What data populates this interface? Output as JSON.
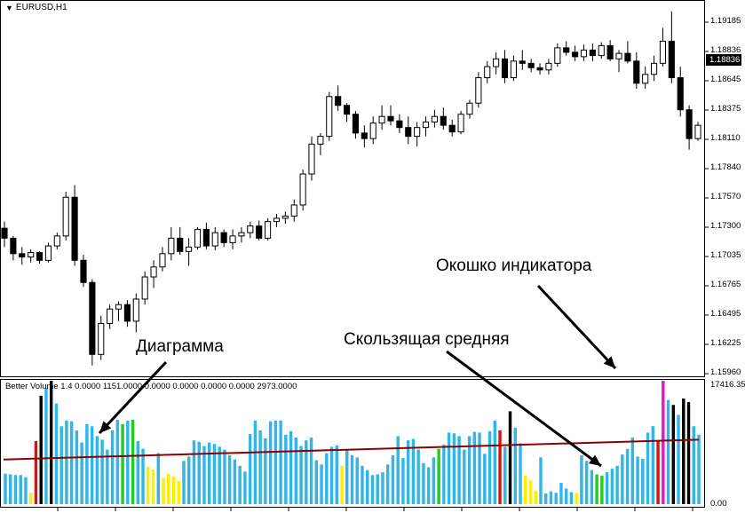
{
  "window": {
    "symbol_title": "EURUSD,H1",
    "menu_icon": "triangle-down-icon"
  },
  "price_axis": {
    "labels": [
      "1.19185",
      "1.18836",
      "1.18645",
      "1.18375",
      "1.18110",
      "1.17840",
      "1.17570",
      "1.17300",
      "1.17035",
      "1.16765",
      "1.16495",
      "1.16225",
      "1.15960"
    ],
    "current_price": "1.18836"
  },
  "indicator": {
    "title": "Better Volume 1.4 0.0000 1151.0000 0.0000 0.0000 0.0000 0.0000 2973.0000",
    "axis_top": "17416.35",
    "axis_bottom": "0.00"
  },
  "annotations": {
    "indicator_window": "Окошко индикатора",
    "moving_average": "Скользящая средняя",
    "diagram": "Диаграмма"
  },
  "colors": {
    "volume_blue": "#33b5e5",
    "volume_green": "#22cc22",
    "volume_yellow": "#ffee00",
    "volume_red": "#dd1111",
    "volume_black": "#000000",
    "volume_magenta": "#ee11cc",
    "moving_average": "#8b0000",
    "candle_bull": "#ffffff",
    "candle_bear": "#000000"
  },
  "chart_data": [
    {
      "type": "candlestick",
      "title": "EURUSD,H1",
      "ylim": [
        1.1596,
        1.1932
      ],
      "candles": [
        [
          1.1729,
          1.1735,
          1.1712,
          1.172
        ],
        [
          1.172,
          1.1722,
          1.17,
          1.1706
        ],
        [
          1.1706,
          1.1712,
          1.1696,
          1.1703
        ],
        [
          1.1703,
          1.171,
          1.1698,
          1.1707
        ],
        [
          1.1707,
          1.1708,
          1.1697,
          1.17
        ],
        [
          1.17,
          1.1716,
          1.1698,
          1.1713
        ],
        [
          1.1713,
          1.1725,
          1.171,
          1.1722
        ],
        [
          1.1722,
          1.1762,
          1.1718,
          1.1757
        ],
        [
          1.1757,
          1.1768,
          1.1695,
          1.17
        ],
        [
          1.17,
          1.1705,
          1.1676,
          1.168
        ],
        [
          1.168,
          1.1683,
          1.1605,
          1.1615
        ],
        [
          1.1615,
          1.165,
          1.161,
          1.1643
        ],
        [
          1.1643,
          1.166,
          1.1638,
          1.1656
        ],
        [
          1.1656,
          1.1663,
          1.1645,
          1.166
        ],
        [
          1.166,
          1.1664,
          1.164,
          1.1645
        ],
        [
          1.1645,
          1.167,
          1.1635,
          1.1665
        ],
        [
          1.1665,
          1.169,
          1.166,
          1.1685
        ],
        [
          1.1685,
          1.17,
          1.1675,
          1.1694
        ],
        [
          1.1694,
          1.1712,
          1.169,
          1.1706
        ],
        [
          1.1706,
          1.173,
          1.17,
          1.172
        ],
        [
          1.172,
          1.173,
          1.1705,
          1.1708
        ],
        [
          1.1708,
          1.172,
          1.1695,
          1.1712
        ],
        [
          1.1712,
          1.173,
          1.171,
          1.1728
        ],
        [
          1.1728,
          1.1734,
          1.171,
          1.1713
        ],
        [
          1.1713,
          1.173,
          1.1709,
          1.1725
        ],
        [
          1.1725,
          1.1728,
          1.1712,
          1.1716
        ],
        [
          1.1716,
          1.1728,
          1.171,
          1.1722
        ],
        [
          1.1722,
          1.173,
          1.1716,
          1.1725
        ],
        [
          1.1725,
          1.1735,
          1.172,
          1.1731
        ],
        [
          1.1731,
          1.1736,
          1.1718,
          1.172
        ],
        [
          1.172,
          1.1738,
          1.1718,
          1.1735
        ],
        [
          1.1735,
          1.1742,
          1.173,
          1.1738
        ],
        [
          1.1738,
          1.1744,
          1.1733,
          1.174
        ],
        [
          1.174,
          1.1755,
          1.1735,
          1.175
        ],
        [
          1.175,
          1.1782,
          1.1745,
          1.1778
        ],
        [
          1.1778,
          1.1812,
          1.1772,
          1.1805
        ],
        [
          1.1805,
          1.1815,
          1.1795,
          1.1812
        ],
        [
          1.1812,
          1.1852,
          1.1808,
          1.1848
        ],
        [
          1.1848,
          1.1858,
          1.1835,
          1.184
        ],
        [
          1.184,
          1.1842,
          1.1825,
          1.1832
        ],
        [
          1.1832,
          1.1835,
          1.181,
          1.1815
        ],
        [
          1.1815,
          1.1822,
          1.1802,
          1.181
        ],
        [
          1.181,
          1.183,
          1.1805,
          1.1824
        ],
        [
          1.1824,
          1.184,
          1.1818,
          1.183
        ],
        [
          1.183,
          1.184,
          1.1822,
          1.1826
        ],
        [
          1.1826,
          1.1832,
          1.1815,
          1.182
        ],
        [
          1.182,
          1.183,
          1.1805,
          1.1812
        ],
        [
          1.1812,
          1.1825,
          1.1803,
          1.182
        ],
        [
          1.182,
          1.183,
          1.1812,
          1.1825
        ],
        [
          1.1825,
          1.1836,
          1.182,
          1.183
        ],
        [
          1.183,
          1.1838,
          1.1818,
          1.1822
        ],
        [
          1.1822,
          1.1827,
          1.1812,
          1.1816
        ],
        [
          1.1816,
          1.1835,
          1.1814,
          1.1832
        ],
        [
          1.1832,
          1.1845,
          1.1828,
          1.1842
        ],
        [
          1.1842,
          1.187,
          1.1838,
          1.1865
        ],
        [
          1.1865,
          1.188,
          1.186,
          1.1875
        ],
        [
          1.1875,
          1.1888,
          1.1868,
          1.1882
        ],
        [
          1.1882,
          1.189,
          1.186,
          1.1865
        ],
        [
          1.1865,
          1.1885,
          1.1862,
          1.188
        ],
        [
          1.188,
          1.189,
          1.1872,
          1.1878
        ],
        [
          1.1878,
          1.1882,
          1.187,
          1.1874
        ],
        [
          1.1874,
          1.1878,
          1.1868,
          1.1872
        ],
        [
          1.1872,
          1.1882,
          1.1868,
          1.1878
        ],
        [
          1.1878,
          1.1896,
          1.1875,
          1.1892
        ],
        [
          1.1892,
          1.1898,
          1.1885,
          1.1888
        ],
        [
          1.1888,
          1.1894,
          1.188,
          1.1884
        ],
        [
          1.1884,
          1.1895,
          1.188,
          1.189
        ],
        [
          1.189,
          1.1896,
          1.188,
          1.1885
        ],
        [
          1.1885,
          1.1897,
          1.1882,
          1.1894
        ],
        [
          1.1894,
          1.1899,
          1.188,
          1.1882
        ],
        [
          1.1882,
          1.189,
          1.187,
          1.1887
        ],
        [
          1.1887,
          1.1898,
          1.1878,
          1.188
        ],
        [
          1.188,
          1.1888,
          1.1855,
          1.186
        ],
        [
          1.186,
          1.1875,
          1.1855,
          1.1868
        ],
        [
          1.1868,
          1.1885,
          1.1862,
          1.1878
        ],
        [
          1.1878,
          1.191,
          1.1875,
          1.1898
        ],
        [
          1.1898,
          1.1925,
          1.186,
          1.1865
        ],
        [
          1.1865,
          1.1875,
          1.183,
          1.1836
        ],
        [
          1.1836,
          1.184,
          1.18,
          1.181
        ],
        [
          1.181,
          1.1825,
          1.1808,
          1.1822
        ]
      ]
    },
    {
      "type": "bar",
      "title": "Better Volume 1.4",
      "ylim": [
        0,
        17416.35
      ],
      "series": [
        {
          "name": "Volume",
          "values": [
            {
              "v": 4300,
              "c": "blue"
            },
            {
              "v": 4200,
              "c": "blue"
            },
            {
              "v": 4100,
              "c": "blue"
            },
            {
              "v": 4100,
              "c": "blue"
            },
            {
              "v": 3800,
              "c": "blue"
            },
            {
              "v": 1600,
              "c": "yellow"
            },
            {
              "v": 8900,
              "c": "red"
            },
            {
              "v": 15300,
              "c": "black"
            },
            {
              "v": 16400,
              "c": "blue"
            },
            {
              "v": 17416,
              "c": "black"
            },
            {
              "v": 14200,
              "c": "blue"
            },
            {
              "v": 11000,
              "c": "blue"
            },
            {
              "v": 11800,
              "c": "blue"
            },
            {
              "v": 11700,
              "c": "blue"
            },
            {
              "v": 10400,
              "c": "blue"
            },
            {
              "v": 8700,
              "c": "blue"
            },
            {
              "v": 11300,
              "c": "blue"
            },
            {
              "v": 11000,
              "c": "blue"
            },
            {
              "v": 9600,
              "c": "blue"
            },
            {
              "v": 9100,
              "c": "blue"
            },
            {
              "v": 7700,
              "c": "blue"
            },
            {
              "v": 10400,
              "c": "blue"
            },
            {
              "v": 11900,
              "c": "blue"
            },
            {
              "v": 11300,
              "c": "green"
            },
            {
              "v": 11800,
              "c": "blue"
            },
            {
              "v": 11900,
              "c": "green"
            },
            {
              "v": 8900,
              "c": "blue"
            },
            {
              "v": 7800,
              "c": "blue"
            },
            {
              "v": 5300,
              "c": "yellow"
            },
            {
              "v": 4900,
              "c": "yellow"
            },
            {
              "v": 7200,
              "c": "blue"
            },
            {
              "v": 3700,
              "c": "yellow"
            },
            {
              "v": 4300,
              "c": "yellow"
            },
            {
              "v": 3900,
              "c": "yellow"
            },
            {
              "v": 3300,
              "c": "yellow"
            },
            {
              "v": 6100,
              "c": "blue"
            },
            {
              "v": 6700,
              "c": "blue"
            },
            {
              "v": 9000,
              "c": "blue"
            },
            {
              "v": 8800,
              "c": "blue"
            },
            {
              "v": 8200,
              "c": "blue"
            },
            {
              "v": 8700,
              "c": "blue"
            },
            {
              "v": 8500,
              "c": "blue"
            },
            {
              "v": 8100,
              "c": "blue"
            },
            {
              "v": 7700,
              "c": "blue"
            },
            {
              "v": 6900,
              "c": "blue"
            },
            {
              "v": 6300,
              "c": "blue"
            },
            {
              "v": 5400,
              "c": "blue"
            },
            {
              "v": 4600,
              "c": "blue"
            },
            {
              "v": 9900,
              "c": "blue"
            },
            {
              "v": 11800,
              "c": "blue"
            },
            {
              "v": 10400,
              "c": "blue"
            },
            {
              "v": 9300,
              "c": "blue"
            },
            {
              "v": 11700,
              "c": "blue"
            },
            {
              "v": 11800,
              "c": "blue"
            },
            {
              "v": 11800,
              "c": "blue"
            },
            {
              "v": 9800,
              "c": "blue"
            },
            {
              "v": 10300,
              "c": "blue"
            },
            {
              "v": 9400,
              "c": "blue"
            },
            {
              "v": 8200,
              "c": "blue"
            },
            {
              "v": 9000,
              "c": "blue"
            },
            {
              "v": 9400,
              "c": "blue"
            },
            {
              "v": 6200,
              "c": "blue"
            },
            {
              "v": 5600,
              "c": "blue"
            },
            {
              "v": 7200,
              "c": "blue"
            },
            {
              "v": 8100,
              "c": "blue"
            },
            {
              "v": 8300,
              "c": "blue"
            },
            {
              "v": 5400,
              "c": "yellow"
            },
            {
              "v": 7700,
              "c": "blue"
            },
            {
              "v": 6900,
              "c": "blue"
            },
            {
              "v": 6600,
              "c": "blue"
            },
            {
              "v": 5400,
              "c": "blue"
            },
            {
              "v": 4800,
              "c": "blue"
            },
            {
              "v": 4100,
              "c": "blue"
            },
            {
              "v": 4200,
              "c": "blue"
            },
            {
              "v": 4500,
              "c": "blue"
            },
            {
              "v": 5600,
              "c": "blue"
            },
            {
              "v": 6900,
              "c": "blue"
            },
            {
              "v": 9600,
              "c": "blue"
            },
            {
              "v": 6500,
              "c": "blue"
            },
            {
              "v": 9000,
              "c": "blue"
            },
            {
              "v": 9200,
              "c": "blue"
            },
            {
              "v": 7700,
              "c": "blue"
            },
            {
              "v": 5800,
              "c": "blue"
            },
            {
              "v": 5200,
              "c": "blue"
            },
            {
              "v": 6600,
              "c": "blue"
            },
            {
              "v": 7800,
              "c": "green"
            },
            {
              "v": 8400,
              "c": "blue"
            },
            {
              "v": 10100,
              "c": "blue"
            },
            {
              "v": 10000,
              "c": "blue"
            },
            {
              "v": 9600,
              "c": "blue"
            },
            {
              "v": 7700,
              "c": "blue"
            },
            {
              "v": 9600,
              "c": "blue"
            },
            {
              "v": 10200,
              "c": "blue"
            },
            {
              "v": 10100,
              "c": "blue"
            },
            {
              "v": 7100,
              "c": "blue"
            },
            {
              "v": 10300,
              "c": "blue"
            },
            {
              "v": 11800,
              "c": "blue"
            },
            {
              "v": 10400,
              "c": "red"
            },
            {
              "v": 8100,
              "c": "blue"
            },
            {
              "v": 13100,
              "c": "black"
            },
            {
              "v": 10800,
              "c": "blue"
            },
            {
              "v": 8600,
              "c": "blue"
            },
            {
              "v": 4000,
              "c": "yellow"
            },
            {
              "v": 3400,
              "c": "yellow"
            },
            {
              "v": 1900,
              "c": "yellow"
            },
            {
              "v": 6600,
              "c": "blue"
            },
            {
              "v": 1500,
              "c": "blue"
            },
            {
              "v": 1800,
              "c": "blue"
            },
            {
              "v": 1600,
              "c": "blue"
            },
            {
              "v": 3000,
              "c": "blue"
            },
            {
              "v": 2200,
              "c": "blue"
            },
            {
              "v": 1700,
              "c": "blue"
            },
            {
              "v": 1600,
              "c": "yellow"
            },
            {
              "v": 6900,
              "c": "blue"
            },
            {
              "v": 6100,
              "c": "blue"
            },
            {
              "v": 4800,
              "c": "blue"
            },
            {
              "v": 4200,
              "c": "green"
            },
            {
              "v": 4000,
              "c": "green"
            },
            {
              "v": 4500,
              "c": "blue"
            },
            {
              "v": 5000,
              "c": "blue"
            },
            {
              "v": 5400,
              "c": "blue"
            },
            {
              "v": 7000,
              "c": "blue"
            },
            {
              "v": 7800,
              "c": "blue"
            },
            {
              "v": 9400,
              "c": "blue"
            },
            {
              "v": 6700,
              "c": "blue"
            },
            {
              "v": 6400,
              "c": "blue"
            },
            {
              "v": 10100,
              "c": "blue"
            },
            {
              "v": 11000,
              "c": "blue"
            },
            {
              "v": 9000,
              "c": "red"
            },
            {
              "v": 17400,
              "c": "magenta"
            },
            {
              "v": 14700,
              "c": "blue"
            },
            {
              "v": 14000,
              "c": "black"
            },
            {
              "v": 12600,
              "c": "blue"
            },
            {
              "v": 14900,
              "c": "black"
            },
            {
              "v": 14400,
              "c": "black"
            },
            {
              "v": 11000,
              "c": "blue"
            },
            {
              "v": 9800,
              "c": "blue"
            }
          ]
        },
        {
          "name": "Moving average",
          "ma_start": 6300,
          "ma_end": 9100
        }
      ]
    }
  ]
}
